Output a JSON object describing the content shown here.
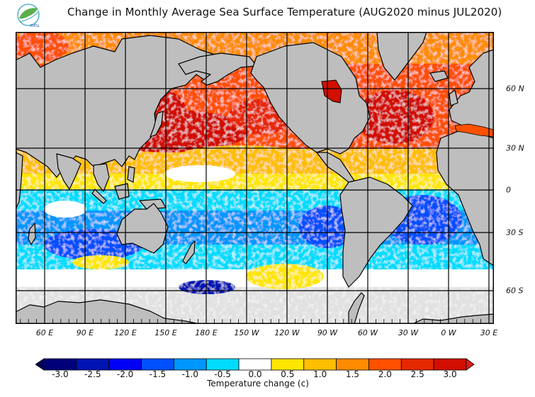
{
  "header": {
    "logo_text": "สสน",
    "title": "Change in Monthly Average Sea Surface Temperature (AUG2020 minus JUL2020)"
  },
  "map": {
    "projection": "equirectangular",
    "longitude_labels": [
      "60 E",
      "90 E",
      "120 E",
      "150 E",
      "180 E",
      "150 W",
      "120 W",
      "90 W",
      "60 W",
      "30 W",
      "0 W",
      "30 E"
    ],
    "latitude_labels": [
      "60 N",
      "30 N",
      "0",
      "30 S",
      "60 S"
    ],
    "colors": {
      "land": "#bebebe",
      "ice": "#e1e1e1",
      "coast": "#000000",
      "grid": "#000000"
    },
    "regions": [
      {
        "name": "north-pacific",
        "anomaly": 2.5
      },
      {
        "name": "north-atlantic",
        "anomaly": 2.0
      },
      {
        "name": "arctic-seas",
        "anomaly": 1.5
      },
      {
        "name": "tropical-north",
        "anomaly": 0.5
      },
      {
        "name": "tropical-south-pacific",
        "anomaly": -1.0
      },
      {
        "name": "south-atlantic",
        "anomaly": -1.5
      },
      {
        "name": "indian-ocean",
        "anomaly": -1.0
      },
      {
        "name": "southern-ocean",
        "anomaly": -0.5
      }
    ]
  },
  "colorbar": {
    "title": "Temperature change  (c)",
    "ticks": [
      "-3.0",
      "-2.5",
      "-2.0",
      "-1.5",
      "-1.0",
      "-0.5",
      "0.0",
      "0.5",
      "1.0",
      "1.5",
      "2.0",
      "2.5",
      "3.0"
    ],
    "colors": [
      "#00007a",
      "#0014b4",
      "#0000f5",
      "#0050ff",
      "#0096ff",
      "#00dcff",
      "#ffffff",
      "#ffe600",
      "#ffbe00",
      "#ff8c00",
      "#ff5000",
      "#e62800",
      "#d20f00"
    ],
    "under_color": "#00005a",
    "over_color": "#dc1e1e"
  }
}
